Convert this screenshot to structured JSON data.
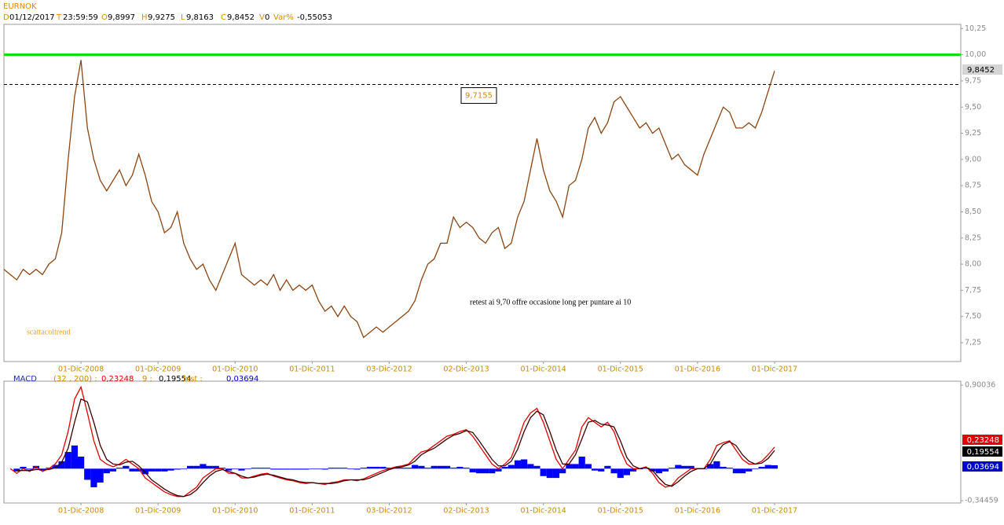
{
  "header": {
    "symbol": "EURNOK",
    "fields": [
      {
        "key": "D",
        "value": "01/12/2017"
      },
      {
        "key": "T",
        "value": "23:59:59"
      },
      {
        "key": "O",
        "value": "9,8997"
      },
      {
        "key": "H",
        "value": "9,9275"
      },
      {
        "key": "L",
        "value": "9,8163"
      },
      {
        "key": "C",
        "value": "9,8452"
      },
      {
        "key": "V",
        "value": "0"
      },
      {
        "key": "Var%",
        "value": "-0,55053"
      }
    ]
  },
  "chart_data": [
    {
      "type": "line",
      "x": [
        0,
        1,
        2,
        3,
        4,
        5,
        6,
        7,
        8,
        9,
        10,
        11,
        12,
        13,
        14,
        15,
        16,
        17,
        18,
        19,
        20,
        21,
        22,
        23,
        24,
        25,
        26,
        27,
        28,
        29,
        30,
        31,
        32,
        33,
        34,
        35,
        36,
        37,
        38,
        39,
        40,
        41,
        42,
        43,
        44,
        45,
        46,
        47,
        48,
        49,
        50,
        51,
        52,
        53,
        54,
        55,
        56,
        57,
        58,
        59,
        60,
        61,
        62,
        63,
        64,
        65,
        66,
        67,
        68,
        69,
        70,
        71,
        72,
        73,
        74,
        75,
        76,
        77,
        78,
        79,
        80,
        81,
        82,
        83,
        84,
        85,
        86,
        87,
        88,
        89,
        90,
        91,
        92,
        93,
        94,
        95,
        96,
        97,
        98,
        99,
        100,
        101,
        102,
        103,
        104,
        105,
        106,
        107,
        108,
        109,
        110,
        111,
        112,
        113,
        114,
        115,
        116,
        117,
        118,
        119,
        120
      ],
      "series": [
        {
          "color": "#8b4513",
          "values": [
            7.95,
            7.9,
            7.85,
            7.95,
            7.9,
            7.95,
            7.9,
            8.0,
            8.05,
            8.3,
            9.0,
            9.6,
            9.95,
            9.3,
            9.0,
            8.8,
            8.7,
            8.8,
            8.9,
            8.75,
            8.85,
            9.05,
            8.85,
            8.6,
            8.5,
            8.3,
            8.35,
            8.5,
            8.2,
            8.05,
            7.95,
            8.0,
            7.85,
            7.75,
            7.9,
            8.05,
            8.2,
            7.9,
            7.85,
            7.8,
            7.85,
            7.8,
            7.9,
            7.75,
            7.85,
            7.75,
            7.8,
            7.75,
            7.8,
            7.65,
            7.55,
            7.6,
            7.5,
            7.6,
            7.5,
            7.45,
            7.3,
            7.35,
            7.4,
            7.35,
            7.4,
            7.45,
            7.5,
            7.55,
            7.65,
            7.85,
            8.0,
            8.05,
            8.2,
            8.2,
            8.45,
            8.35,
            8.4,
            8.35,
            8.25,
            8.2,
            8.3,
            8.35,
            8.15,
            8.2,
            8.45,
            8.6,
            8.9,
            9.2,
            8.9,
            8.7,
            8.6,
            8.45,
            8.75,
            8.8,
            9.0,
            9.3,
            9.4,
            9.25,
            9.35,
            9.55,
            9.6,
            9.5,
            9.4,
            9.3,
            9.35,
            9.25,
            9.3,
            9.15,
            9.0,
            9.05,
            8.95,
            8.9,
            8.85,
            9.05,
            9.2,
            9.35,
            9.5,
            9.45,
            9.3,
            9.3,
            9.35,
            9.3,
            9.45,
            9.65,
            9.8452
          ]
        }
      ],
      "xlim": [
        0,
        149
      ],
      "xticks": [
        {
          "value": 12,
          "label": "01-Dic-2008"
        },
        {
          "value": 24,
          "label": "01-Dic-2009"
        },
        {
          "value": 36,
          "label": "01-Dic-2010"
        },
        {
          "value": 48,
          "label": "01-Dic-2011"
        },
        {
          "value": 60,
          "label": "03-Dic-2012"
        },
        {
          "value": 72,
          "label": "02-Dic-2013"
        },
        {
          "value": 84,
          "label": "01-Dic-2014"
        },
        {
          "value": 96,
          "label": "01-Dic-2015"
        },
        {
          "value": 108,
          "label": "01-Dic-2016"
        },
        {
          "value": 120,
          "label": "01-Dic-2017"
        }
      ],
      "ylim": [
        7.07,
        10.29
      ],
      "yticks": [
        {
          "value": 7.25,
          "label": "7,25"
        },
        {
          "value": 7.5,
          "label": "7,50"
        },
        {
          "value": 7.75,
          "label": "7,75"
        },
        {
          "value": 8,
          "label": "8,00"
        },
        {
          "value": 8.25,
          "label": "8,25"
        },
        {
          "value": 8.5,
          "label": "8,50"
        },
        {
          "value": 8.75,
          "label": "8,75"
        },
        {
          "value": 9,
          "label": "9,00"
        },
        {
          "value": 9.25,
          "label": "9,25"
        },
        {
          "value": 9.5,
          "label": "9,50"
        },
        {
          "value": 9.75,
          "label": "9,75"
        },
        {
          "value": 10,
          "label": "10,00"
        },
        {
          "value": 10.25,
          "label": "10,25"
        }
      ],
      "levels": [
        {
          "value": 10,
          "color": "#00e000"
        },
        {
          "value": 9.7155,
          "label": "9,7155",
          "dash": true,
          "color": "#000000"
        }
      ],
      "annotation": "retest ai 9,70 offre occasione long per puntare ai 10",
      "watermark": "scattacoltrend"
    },
    {
      "type": "line",
      "indicator": "MACD",
      "readouts": [
        {
          "label": "(32 , 200) :",
          "value": "0,23248",
          "color": "#e00000"
        },
        {
          "label": "9 :",
          "value": "0,19554",
          "color": "#000000"
        },
        {
          "label": "hist :",
          "value": "0,03694",
          "color": "#0000cc"
        }
      ],
      "x": [
        0,
        1,
        2,
        3,
        4,
        5,
        6,
        7,
        8,
        9,
        10,
        11,
        12,
        13,
        14,
        15,
        16,
        17,
        18,
        19,
        20,
        21,
        22,
        23,
        24,
        25,
        26,
        27,
        28,
        29,
        30,
        31,
        32,
        33,
        34,
        35,
        36,
        37,
        38,
        39,
        40,
        41,
        42,
        43,
        44,
        45,
        46,
        47,
        48,
        49,
        50,
        51,
        52,
        53,
        54,
        55,
        56,
        57,
        58,
        59,
        60,
        61,
        62,
        63,
        64,
        65,
        66,
        67,
        68,
        69,
        70,
        71,
        72,
        73,
        74,
        75,
        76,
        77,
        78,
        79,
        80,
        81,
        82,
        83,
        84,
        85,
        86,
        87,
        88,
        89,
        90,
        91,
        92,
        93,
        94,
        95,
        96,
        97,
        98,
        99,
        100,
        101,
        102,
        103,
        104,
        105,
        106,
        107,
        108,
        109,
        110,
        111,
        112,
        113,
        114,
        115,
        116,
        117,
        118,
        119,
        120
      ],
      "series": [
        {
          "type": "bar",
          "color": "#0000ff",
          "values": [
            null,
            null,
            -0.03,
            0.02,
            -0.01,
            0.03,
            -0.02,
            0.01,
            0.04,
            0.08,
            0.18,
            0.25,
            0.13,
            -0.12,
            -0.2,
            -0.15,
            -0.05,
            -0.03,
            0.01,
            0.03,
            -0.03,
            -0.03,
            -0.06,
            -0.03,
            -0.03,
            -0.03,
            -0.02,
            -0.01,
            0.0,
            0.03,
            0.03,
            0.05,
            0.03,
            0.03,
            0.01,
            -0.02,
            0.0,
            -0.02,
            0.0,
            0.01,
            0.01,
            0.01,
            -0.01,
            -0.01,
            -0.01,
            -0.01,
            -0.01,
            -0.01,
            0.0,
            0.0,
            -0.01,
            0.01,
            0.01,
            0.01,
            0.0,
            -0.01,
            0.01,
            0.02,
            0.02,
            0.02,
            0.01,
            0.01,
            0.01,
            0.01,
            0.04,
            0.03,
            0.01,
            0.03,
            0.03,
            0.03,
            0.01,
            0.02,
            0.01,
            -0.04,
            -0.05,
            -0.05,
            -0.05,
            -0.03,
            0.02,
            0.04,
            0.09,
            0.1,
            0.05,
            0.03,
            -0.08,
            -0.1,
            -0.1,
            -0.05,
            0.05,
            0.05,
            0.13,
            0.05,
            -0.02,
            -0.03,
            0.03,
            -0.05,
            -0.1,
            -0.07,
            -0.03,
            0.0,
            0.01,
            -0.03,
            -0.05,
            -0.03,
            0.01,
            0.04,
            0.03,
            0.03,
            0.0,
            0.0,
            0.05,
            0.08,
            0.02,
            0.01,
            -0.05,
            -0.05,
            -0.03,
            0.0,
            0.02,
            0.04,
            0.03694
          ]
        },
        {
          "color": "#e00000",
          "values": [
            null,
            0.0,
            -0.05,
            0.0,
            -0.03,
            0.02,
            -0.03,
            0.0,
            0.05,
            0.15,
            0.4,
            0.75,
            0.88,
            0.6,
            0.3,
            0.1,
            0.05,
            0.02,
            0.05,
            0.1,
            0.05,
            0.0,
            -0.1,
            -0.15,
            -0.2,
            -0.25,
            -0.28,
            -0.3,
            -0.3,
            -0.25,
            -0.2,
            -0.1,
            -0.05,
            0.0,
            0.0,
            -0.05,
            -0.05,
            -0.1,
            -0.1,
            -0.08,
            -0.06,
            -0.05,
            -0.08,
            -0.1,
            -0.12,
            -0.13,
            -0.15,
            -0.16,
            -0.15,
            -0.16,
            -0.17,
            -0.15,
            -0.14,
            -0.12,
            -0.12,
            -0.13,
            -0.11,
            -0.08,
            -0.05,
            -0.02,
            0.0,
            0.02,
            0.03,
            0.05,
            0.12,
            0.18,
            0.2,
            0.25,
            0.3,
            0.35,
            0.37,
            0.4,
            0.42,
            0.35,
            0.25,
            0.15,
            0.05,
            0.0,
            0.05,
            0.12,
            0.3,
            0.5,
            0.6,
            0.65,
            0.5,
            0.3,
            0.1,
            0.0,
            0.1,
            0.2,
            0.45,
            0.55,
            0.5,
            0.45,
            0.5,
            0.4,
            0.2,
            0.05,
            0.0,
            0.0,
            0.02,
            -0.05,
            -0.15,
            -0.2,
            -0.18,
            -0.1,
            -0.05,
            0.0,
            0.0,
            0.0,
            0.1,
            0.25,
            0.28,
            0.3,
            0.2,
            0.1,
            0.05,
            0.05,
            0.08,
            0.15,
            0.23248
          ]
        },
        {
          "color": "#3a0000",
          "values": [
            null,
            null,
            -0.02,
            -0.02,
            -0.02,
            -0.01,
            -0.01,
            -0.01,
            0.01,
            0.07,
            0.22,
            0.5,
            0.75,
            0.72,
            0.5,
            0.25,
            0.1,
            0.05,
            0.04,
            0.07,
            0.08,
            0.03,
            -0.04,
            -0.12,
            -0.17,
            -0.22,
            -0.26,
            -0.29,
            -0.3,
            -0.28,
            -0.23,
            -0.15,
            -0.08,
            -0.03,
            -0.01,
            -0.03,
            -0.05,
            -0.08,
            -0.1,
            -0.09,
            -0.07,
            -0.06,
            -0.07,
            -0.09,
            -0.11,
            -0.12,
            -0.14,
            -0.15,
            -0.15,
            -0.16,
            -0.16,
            -0.16,
            -0.15,
            -0.13,
            -0.12,
            -0.12,
            -0.12,
            -0.1,
            -0.07,
            -0.04,
            -0.01,
            0.01,
            0.02,
            0.04,
            0.08,
            0.15,
            0.19,
            0.22,
            0.27,
            0.32,
            0.36,
            0.38,
            0.41,
            0.39,
            0.3,
            0.2,
            0.1,
            0.03,
            0.03,
            0.08,
            0.21,
            0.4,
            0.55,
            0.62,
            0.58,
            0.4,
            0.2,
            0.05,
            0.05,
            0.15,
            0.32,
            0.5,
            0.52,
            0.48,
            0.47,
            0.45,
            0.3,
            0.12,
            0.03,
            0.0,
            0.01,
            -0.02,
            -0.1,
            -0.17,
            -0.19,
            -0.14,
            -0.08,
            -0.03,
            0.0,
            0.0,
            0.05,
            0.17,
            0.26,
            0.29,
            0.25,
            0.15,
            0.08,
            0.05,
            0.06,
            0.11,
            0.19554
          ]
        }
      ],
      "xlim": [
        0,
        149
      ],
      "xticks": [
        {
          "value": 12,
          "label": "01-Dic-2008"
        },
        {
          "value": 24,
          "label": "01-Dic-2009"
        },
        {
          "value": 36,
          "label": "01-Dic-2010"
        },
        {
          "value": 48,
          "label": "01-Dic-2011"
        },
        {
          "value": 60,
          "label": "03-Dic-2012"
        },
        {
          "value": 72,
          "label": "02-Dic-2013"
        },
        {
          "value": 84,
          "label": "01-Dic-2014"
        },
        {
          "value": 96,
          "label": "01-Dic-2015"
        },
        {
          "value": 108,
          "label": "01-Dic-2016"
        },
        {
          "value": 120,
          "label": "01-Dic-2017"
        }
      ],
      "ylim": [
        -0.37,
        0.943
      ],
      "yticks": [
        {
          "value": -0.34459,
          "label": "-0,34459"
        },
        {
          "value": 0.90036,
          "label": "0,90036"
        }
      ]
    }
  ]
}
